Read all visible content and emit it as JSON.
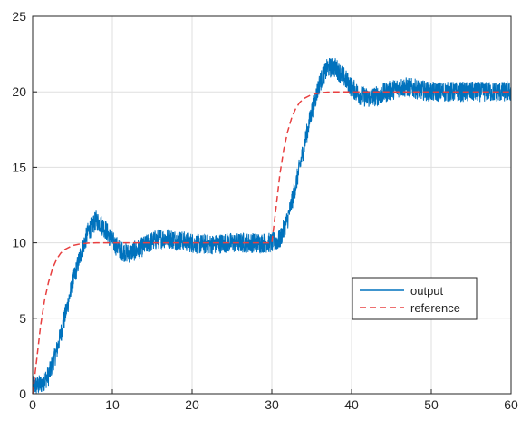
{
  "chart_data": {
    "type": "line",
    "title": "",
    "xlabel": "",
    "ylabel": "",
    "xlim": [
      0,
      60
    ],
    "ylim": [
      0,
      25
    ],
    "xticks": [
      "0",
      "10",
      "20",
      "30",
      "40",
      "50",
      "60"
    ],
    "yticks": [
      "0",
      "5",
      "10",
      "15",
      "20",
      "25"
    ],
    "grid": true,
    "legend_position": "lower-right",
    "series": [
      {
        "name": "output",
        "color": "#0072BD",
        "style": "solid",
        "noise": "heavy",
        "x": [
          0,
          1,
          2,
          3,
          4,
          5,
          6,
          7,
          8,
          9,
          10,
          11,
          12,
          13,
          14,
          15,
          16,
          17,
          18,
          19,
          20,
          21,
          22,
          23,
          24,
          25,
          26,
          27,
          28,
          29,
          30,
          31,
          32,
          33,
          34,
          35,
          36,
          37,
          38,
          39,
          40,
          41,
          42,
          43,
          44,
          45,
          46,
          47,
          48,
          49,
          50,
          51,
          52,
          53,
          54,
          55,
          56,
          57,
          58,
          59,
          60
        ],
        "values": [
          0.5,
          0.6,
          1.2,
          2.8,
          5.0,
          7.3,
          9.2,
          10.8,
          11.5,
          11.0,
          10.1,
          9.5,
          9.3,
          9.5,
          9.8,
          10.1,
          10.3,
          10.3,
          10.2,
          10.1,
          10.0,
          9.9,
          9.9,
          9.9,
          10.0,
          10.0,
          10.0,
          10.0,
          10.0,
          10.0,
          10.0,
          10.2,
          11.6,
          13.8,
          16.3,
          18.7,
          20.6,
          21.6,
          21.6,
          21.0,
          20.3,
          19.8,
          19.6,
          19.7,
          19.9,
          20.1,
          20.3,
          20.3,
          20.2,
          20.1,
          20.0,
          20.0,
          20.0,
          20.0,
          20.0,
          20.0,
          20.0,
          20.0,
          20.0,
          20.0,
          20.0
        ]
      },
      {
        "name": "reference",
        "color": "#E84040",
        "style": "dashed",
        "x": [
          0,
          0.5,
          1,
          1.5,
          2,
          2.5,
          3,
          3.5,
          4,
          5,
          6,
          7,
          8,
          10,
          20,
          30,
          30.5,
          31,
          31.5,
          32,
          32.5,
          33,
          33.5,
          34,
          35,
          36,
          37,
          38,
          40,
          50,
          60
        ],
        "values": [
          0,
          2.2,
          4.5,
          6.2,
          7.4,
          8.3,
          8.9,
          9.3,
          9.55,
          9.82,
          9.93,
          9.98,
          10.0,
          10.0,
          10.0,
          10.0,
          12.2,
          14.5,
          16.2,
          17.4,
          18.3,
          18.9,
          19.3,
          19.55,
          19.82,
          19.93,
          19.98,
          20.0,
          20.0,
          20.0,
          20.0
        ]
      }
    ]
  }
}
